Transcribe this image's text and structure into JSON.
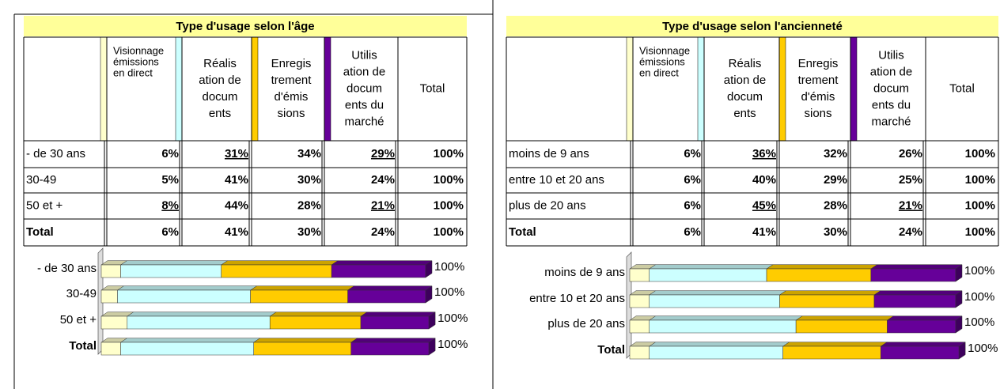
{
  "panels": [
    {
      "title": "Type d'usage selon l'âge",
      "header": [
        [
          "Visionnage",
          "émissions",
          "en direct"
        ],
        [
          "Réalis",
          "ation de",
          "docum",
          "ents"
        ],
        [
          "Enregis",
          "trement",
          "d'émis",
          "sions"
        ],
        [
          "Utilis",
          "ation de",
          "docum",
          "ents du",
          "marché"
        ],
        [
          "Total"
        ]
      ],
      "header_colors": [
        "#ffffcc",
        "#ccffff",
        "#ffcc00",
        "#660099"
      ],
      "rows": [
        {
          "label": "- de 30 ans",
          "cells": [
            "6%",
            "31%",
            "34%",
            "29%",
            "100%"
          ],
          "marked": {
            "1": "#ff00ff",
            "3": "#0000cc"
          }
        },
        {
          "label": "30-49",
          "cells": [
            "5%",
            "41%",
            "30%",
            "24%",
            "100%"
          ]
        },
        {
          "label": "50 et +",
          "cells": [
            "8%",
            "44%",
            "28%",
            "21%",
            "100%"
          ],
          "marked": {
            "0": "#0000cc",
            "3": "#ff00ff"
          }
        },
        {
          "label": "Total",
          "cells": [
            "6%",
            "41%",
            "30%",
            "24%",
            "100%"
          ],
          "bold": true
        }
      ],
      "chart": {
        "type": "stacked_bar_3d",
        "categories": [
          "- de 30 ans",
          "30-49",
          "50 et +",
          "Total"
        ],
        "series": [
          {
            "color": "#ffffcc",
            "values": [
              6,
              5,
              8,
              6
            ]
          },
          {
            "color": "#ccffff",
            "values": [
              31,
              41,
              44,
              41
            ]
          },
          {
            "color": "#ffcc00",
            "values": [
              34,
              30,
              28,
              30
            ]
          },
          {
            "color": "#660099",
            "values": [
              29,
              24,
              21,
              24
            ]
          }
        ],
        "total_labels": [
          "100%",
          "100%",
          "100%",
          "100%"
        ],
        "xlim": [
          0,
          100
        ]
      }
    },
    {
      "title": "Type d'usage selon l'ancienneté",
      "header": [
        [
          "Visionnage",
          "émissions",
          "en direct"
        ],
        [
          "Réalis",
          "ation de",
          "docum",
          "ents"
        ],
        [
          "Enregis",
          "trement",
          "d'émis",
          "sions"
        ],
        [
          "Utilis",
          "ation de",
          "docum",
          "ents du",
          "marché"
        ],
        [
          "Total"
        ]
      ],
      "header_colors": [
        "#ffffcc",
        "#ccffff",
        "#ffcc00",
        "#660099"
      ],
      "rows": [
        {
          "label": "moins de 9 ans",
          "cells": [
            "6%",
            "36%",
            "32%",
            "26%",
            "100%"
          ],
          "marked": {
            "1": "#ff00ff"
          }
        },
        {
          "label": "entre 10 et 20 ans",
          "cells": [
            "6%",
            "40%",
            "29%",
            "25%",
            "100%"
          ]
        },
        {
          "label": "plus de 20 ans",
          "cells": [
            "6%",
            "45%",
            "28%",
            "21%",
            "100%"
          ],
          "marked": {
            "1": "#0000cc",
            "3": "#ff00ff"
          }
        },
        {
          "label": "Total",
          "cells": [
            "6%",
            "41%",
            "30%",
            "24%",
            "100%"
          ],
          "bold": true
        }
      ],
      "chart": {
        "type": "stacked_bar_3d",
        "categories": [
          "moins de 9 ans",
          "entre 10 et 20 ans",
          "plus de 20 ans",
          "Total"
        ],
        "series": [
          {
            "color": "#ffffcc",
            "values": [
              6,
              6,
              6,
              6
            ]
          },
          {
            "color": "#ccffff",
            "values": [
              36,
              40,
              45,
              41
            ]
          },
          {
            "color": "#ffcc00",
            "values": [
              32,
              29,
              28,
              30
            ]
          },
          {
            "color": "#660099",
            "values": [
              26,
              25,
              21,
              24
            ]
          }
        ],
        "total_labels": [
          "100%",
          "100%",
          "100%",
          "100%"
        ],
        "xlim": [
          0,
          100
        ]
      }
    }
  ]
}
